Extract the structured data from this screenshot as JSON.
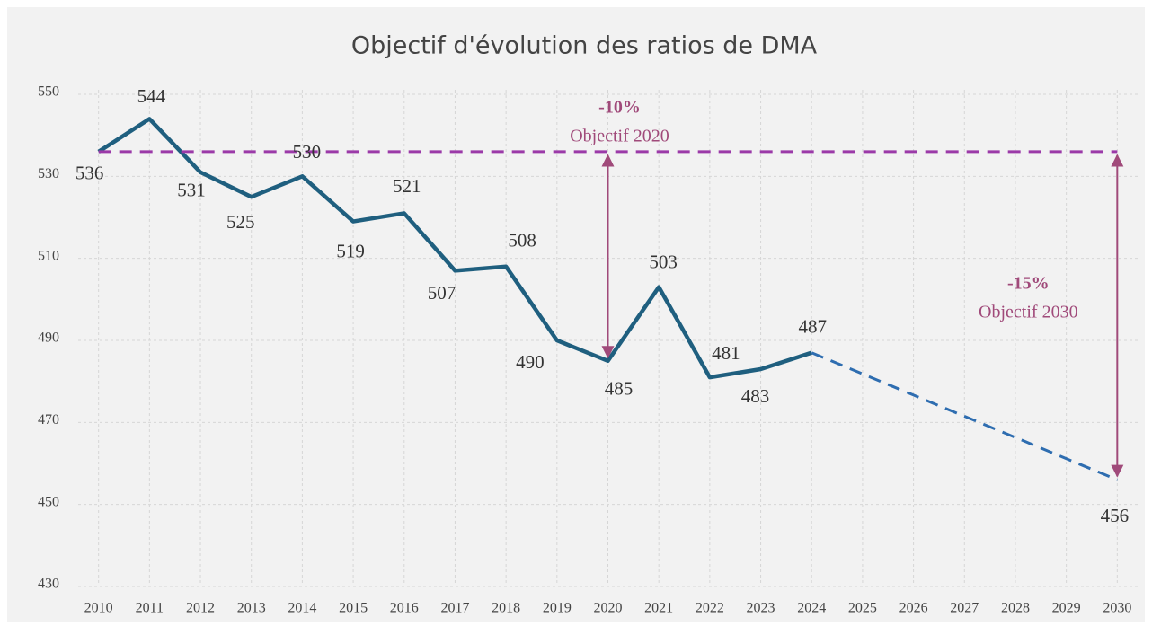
{
  "chart_data": {
    "type": "line",
    "title": "Objectif d'évolution des ratios de DMA",
    "xlim": [
      2009.6,
      2030.4
    ],
    "xticks": [
      2010,
      2011,
      2012,
      2013,
      2014,
      2015,
      2016,
      2017,
      2018,
      2019,
      2020,
      2021,
      2022,
      2023,
      2024,
      2025,
      2026,
      2027,
      2028,
      2029,
      2030
    ],
    "ylim": [
      430,
      550
    ],
    "yticks": [
      430,
      450,
      470,
      490,
      510,
      530,
      550
    ],
    "grid": true,
    "series": [
      {
        "color": "#1f5f7f",
        "dash": false,
        "x": [
          2010,
          2011,
          2012,
          2013,
          2014,
          2015,
          2016,
          2017,
          2018,
          2019,
          2020,
          2021,
          2022,
          2023,
          2024
        ],
        "values": [
          536,
          544,
          531,
          525,
          530,
          519,
          521,
          507,
          508,
          490,
          485,
          503,
          481,
          483,
          487
        ]
      },
      {
        "color": "#2e6db0",
        "dash": true,
        "x": [
          2024,
          2030
        ],
        "values": [
          487,
          456
        ]
      },
      {
        "color": "#9b3aa8",
        "dash": true,
        "x": [
          2010,
          2030
        ],
        "values": [
          536,
          536
        ]
      }
    ],
    "annotations": [
      {
        "text": "-10%",
        "label": "Objectif 2020",
        "x": 2020
      },
      {
        "text": "-15%",
        "label": "Objectif 2030",
        "x": 2030
      }
    ]
  }
}
